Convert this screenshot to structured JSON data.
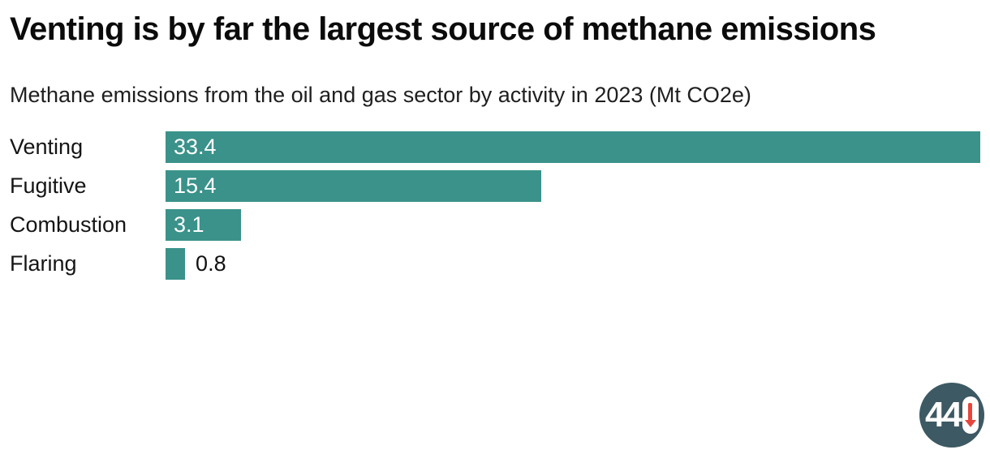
{
  "header": {
    "title": "Venting is by far the largest source of methane emissions",
    "subtitle": "Methane emissions from the oil and gas sector by activity in 2023 (Mt CO2e)"
  },
  "chart_data": {
    "type": "bar",
    "orientation": "horizontal",
    "title": "Venting is by far the largest source of methane emissions",
    "subtitle": "Methane emissions from the oil and gas sector by activity in 2023 (Mt CO2e)",
    "unit": "Mt CO2e",
    "year": "2023",
    "categories": [
      "Venting",
      "Fugitive",
      "Combustion",
      "Flaring"
    ],
    "values": [
      33.4,
      15.4,
      3.1,
      0.8
    ],
    "value_labels": [
      "33.4",
      "15.4",
      "3.1",
      "0.8"
    ],
    "xlim": [
      0,
      33.4
    ],
    "grid": false,
    "legend": false,
    "bar_color": "#3A928A",
    "value_label_inside_color": "#FFFFFF",
    "value_label_outside_color": "#111111"
  },
  "logo": {
    "digits": "44",
    "full_text": "440",
    "circle_color": "#3D5963",
    "arrow_color": "#E8463C"
  }
}
